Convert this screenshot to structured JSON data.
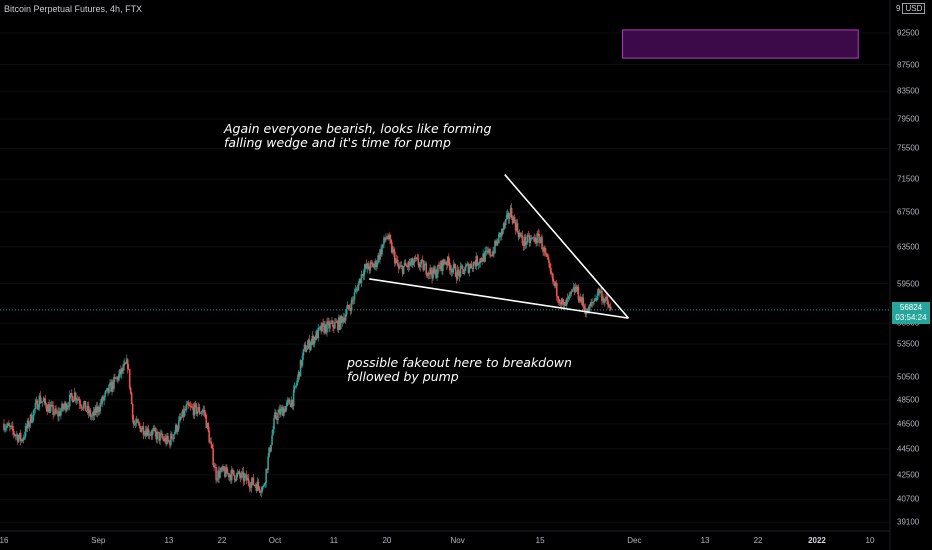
{
  "header": {
    "title": "Bitcoin Perpetual Futures, 4h, FTX",
    "currency_prefix": "9",
    "currency": "USD"
  },
  "price_badge": {
    "price": "56824",
    "countdown": "03:54:24"
  },
  "annotations": [
    {
      "lines": [
        "Again everyone bearish, looks like forming",
        "falling wedge and it's time for pump"
      ]
    },
    {
      "lines": [
        "possible fakeout here to breakdown",
        "followed by pump"
      ]
    }
  ],
  "colors": {
    "up": "#26a69a",
    "down": "#ef5350",
    "wedge": "#ffffff",
    "box_fill": "#3c0a46",
    "box_border": "#b53bc9",
    "last_price_line": "#26a69a",
    "badge": "#26a69a"
  },
  "chart_data": {
    "type": "candlestick",
    "symbol": "Bitcoin Perpetual Futures",
    "interval": "4h",
    "exchange": "FTX",
    "y_scale": "log",
    "ylim": [
      38500,
      97000
    ],
    "yticks": [
      39100,
      40700,
      42500,
      44500,
      46500,
      48500,
      50500,
      53500,
      55500,
      59500,
      63500,
      67500,
      71500,
      75500,
      79500,
      83500,
      87500,
      92500
    ],
    "x_ticks": [
      {
        "label": "16",
        "date": "2021-08-16"
      },
      {
        "label": "Sep",
        "date": "2021-09-01"
      },
      {
        "label": "13",
        "date": "2021-09-13"
      },
      {
        "label": "22",
        "date": "2021-09-22"
      },
      {
        "label": "Oct",
        "date": "2021-10-01"
      },
      {
        "label": "11",
        "date": "2021-10-11"
      },
      {
        "label": "20",
        "date": "2021-10-20"
      },
      {
        "label": "Nov",
        "date": "2021-11-01"
      },
      {
        "label": "15",
        "date": "2021-11-15"
      },
      {
        "label": "Dec",
        "date": "2021-12-01"
      },
      {
        "label": "13",
        "date": "2021-12-13"
      },
      {
        "label": "22",
        "date": "2021-12-22"
      },
      {
        "label": "2022",
        "date": "2022-01-01",
        "bold": true
      },
      {
        "label": "10",
        "date": "2022-01-10"
      }
    ],
    "xlim": [
      "2021-08-16",
      "2022-01-10"
    ],
    "last_price": 56824,
    "price_path": [
      [
        "2021-08-16",
        46500
      ],
      [
        "2021-08-19",
        45200
      ],
      [
        "2021-08-22",
        48600
      ],
      [
        "2021-08-25",
        47200
      ],
      [
        "2021-08-28",
        49000
      ],
      [
        "2021-08-31",
        47000
      ],
      [
        "2021-09-03",
        49500
      ],
      [
        "2021-09-06",
        51700
      ],
      [
        "2021-09-07",
        46500
      ],
      [
        "2021-09-10",
        45800
      ],
      [
        "2021-09-13",
        45000
      ],
      [
        "2021-09-16",
        47800
      ],
      [
        "2021-09-19",
        47500
      ],
      [
        "2021-09-21",
        42500
      ],
      [
        "2021-09-22",
        42700
      ],
      [
        "2021-09-25",
        42400
      ],
      [
        "2021-09-29",
        41500
      ],
      [
        "2021-10-01",
        47000
      ],
      [
        "2021-10-04",
        48500
      ],
      [
        "2021-10-06",
        53000
      ],
      [
        "2021-10-09",
        55000
      ],
      [
        "2021-10-12",
        55500
      ],
      [
        "2021-10-14",
        57500
      ],
      [
        "2021-10-16",
        61000
      ],
      [
        "2021-10-18",
        61500
      ],
      [
        "2021-10-20",
        64800
      ],
      [
        "2021-10-22",
        61000
      ],
      [
        "2021-10-25",
        61800
      ],
      [
        "2021-10-28",
        60500
      ],
      [
        "2021-10-30",
        62000
      ],
      [
        "2021-11-01",
        60500
      ],
      [
        "2021-11-04",
        61800
      ],
      [
        "2021-11-07",
        63000
      ],
      [
        "2021-11-10",
        67500
      ],
      [
        "2021-11-12",
        64000
      ],
      [
        "2021-11-15",
        64500
      ],
      [
        "2021-11-17",
        60000
      ],
      [
        "2021-11-19",
        57000
      ],
      [
        "2021-11-21",
        59000
      ],
      [
        "2021-11-23",
        56500
      ],
      [
        "2021-11-25",
        58800
      ],
      [
        "2021-11-27",
        56800
      ]
    ],
    "wedge_lines": [
      {
        "name": "upper",
        "from": [
          "2021-11-09",
          72100
        ],
        "to": [
          "2021-11-30",
          56000
        ]
      },
      {
        "name": "lower",
        "from": [
          "2021-10-17",
          60000
        ],
        "to": [
          "2021-11-30",
          56000
        ]
      }
    ],
    "target_box": {
      "from": "2021-11-29",
      "to": "2022-01-08",
      "low": 88500,
      "high": 93000
    }
  }
}
